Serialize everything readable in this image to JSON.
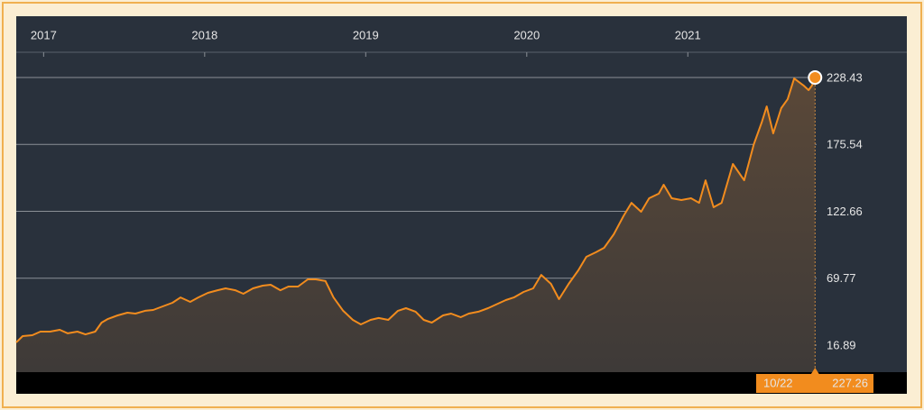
{
  "chart_data": {
    "type": "area",
    "color": "#f28c1e",
    "grid": true,
    "log_scale": false,
    "xlim": [
      2016.83,
      2022.36
    ],
    "xticks": [
      2017,
      2018,
      2019,
      2020,
      2021
    ],
    "ylim": [
      -4.48,
      271.9
    ],
    "yticks": [
      16.89,
      69.77,
      122.66,
      175.54,
      228.43
    ],
    "x": [
      2016.83,
      2016.87,
      2016.93,
      2016.98,
      2017.04,
      2017.1,
      2017.15,
      2017.21,
      2017.26,
      2017.32,
      2017.36,
      2017.4,
      2017.46,
      2017.52,
      2017.57,
      2017.63,
      2017.68,
      2017.74,
      2017.8,
      2017.85,
      2017.91,
      2017.96,
      2018.02,
      2018.08,
      2018.13,
      2018.19,
      2018.24,
      2018.3,
      2018.36,
      2018.41,
      2018.47,
      2018.52,
      2018.58,
      2018.64,
      2018.69,
      2018.75,
      2018.8,
      2018.86,
      2018.92,
      2018.97,
      2019.03,
      2019.08,
      2019.14,
      2019.2,
      2019.25,
      2019.31,
      2019.36,
      2019.41,
      2019.48,
      2019.53,
      2019.59,
      2019.64,
      2019.7,
      2019.76,
      2019.81,
      2019.87,
      2019.92,
      2019.98,
      2020.04,
      2020.09,
      2020.15,
      2020.2,
      2020.26,
      2020.32,
      2020.37,
      2020.43,
      2020.48,
      2020.54,
      2020.6,
      2020.65,
      2020.71,
      2020.76,
      2020.82,
      2020.85,
      2020.9,
      2020.96,
      2021.02,
      2021.07,
      2021.11,
      2021.16,
      2021.21,
      2021.28,
      2021.35,
      2021.41,
      2021.46,
      2021.49,
      2021.53,
      2021.58,
      2021.62,
      2021.66,
      2021.72,
      2021.75,
      2021.77,
      2021.79
    ],
    "values": [
      19.0,
      24.0,
      24.7,
      27.6,
      27.6,
      29.0,
      26.2,
      27.6,
      25.4,
      27.6,
      34.7,
      37.6,
      40.4,
      42.5,
      41.8,
      44.0,
      44.7,
      47.5,
      50.4,
      54.6,
      51.1,
      54.6,
      58.2,
      60.3,
      61.8,
      60.3,
      57.5,
      61.8,
      63.9,
      64.6,
      60.3,
      63.2,
      63.2,
      68.9,
      68.9,
      67.5,
      54.6,
      44.0,
      36.8,
      33.3,
      36.8,
      38.3,
      36.8,
      44.0,
      46.1,
      43.3,
      36.8,
      34.7,
      40.4,
      41.8,
      39.0,
      41.8,
      43.3,
      46.1,
      49.0,
      52.5,
      54.6,
      58.9,
      61.8,
      72.4,
      65.3,
      53.2,
      65.3,
      76.0,
      86.7,
      90.3,
      93.8,
      104.5,
      118.8,
      129.4,
      122.3,
      133.0,
      136.6,
      143.7,
      133.0,
      131.6,
      133.0,
      129.4,
      147.2,
      125.9,
      129.4,
      160.1,
      147.2,
      175.7,
      193.5,
      205.6,
      184.3,
      204.2,
      211.3,
      227.7,
      222.0,
      218.5,
      222.0,
      228.43
    ],
    "cursor": {
      "label": "10/22",
      "value": 227.26
    }
  }
}
